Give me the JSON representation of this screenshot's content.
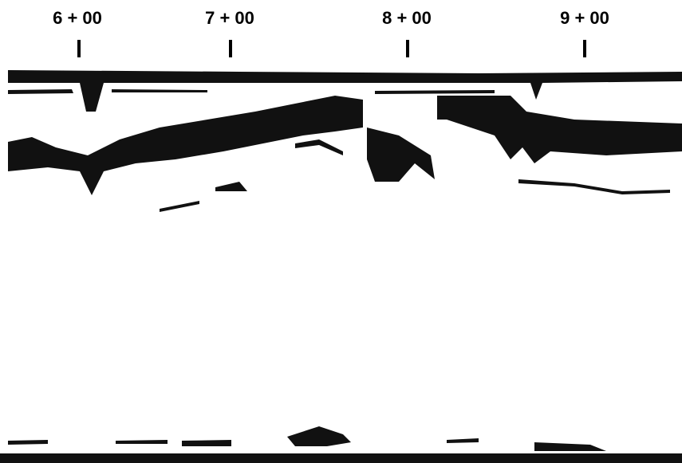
{
  "stations": [
    "6 + 00",
    "7 + 00",
    "8 + 00",
    "9 + 00"
  ]
}
